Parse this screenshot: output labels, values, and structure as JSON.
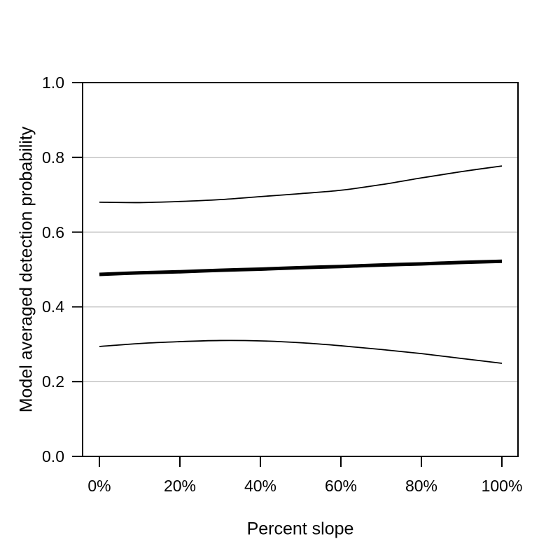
{
  "figure": {
    "background_color": "#ffffff",
    "text_color": "#000000"
  },
  "chart_data": {
    "type": "line",
    "title": "",
    "xlabel": "Percent slope",
    "ylabel": "Model averaged detection probability",
    "xlim": [
      0,
      100
    ],
    "ylim": [
      0.0,
      1.0
    ],
    "legend": "none",
    "grid": {
      "horizontal_at": [
        0.2,
        0.4,
        0.6,
        0.8
      ],
      "color": "#c8c8c8"
    },
    "x_ticks": {
      "values": [
        0,
        20,
        40,
        60,
        80,
        100
      ],
      "labels": [
        "0%",
        "20%",
        "40%",
        "60%",
        "80%",
        "100%"
      ]
    },
    "y_ticks": {
      "values": [
        0.0,
        0.2,
        0.4,
        0.6,
        0.8,
        1.0
      ],
      "labels": [
        "0.0",
        "0.2",
        "0.4",
        "0.6",
        "0.8",
        "1.0"
      ]
    },
    "x": [
      0,
      10,
      20,
      30,
      40,
      50,
      60,
      70,
      80,
      90,
      100
    ],
    "series": [
      {
        "name": "upper-confidence-limit",
        "line_width": "thin",
        "color": "#000000",
        "values": [
          0.68,
          0.679,
          0.682,
          0.687,
          0.695,
          0.703,
          0.712,
          0.727,
          0.745,
          0.762,
          0.777
        ]
      },
      {
        "name": "model-averaged-estimate",
        "line_width": "thick",
        "color": "#000000",
        "values": [
          0.487,
          0.491,
          0.494,
          0.498,
          0.501,
          0.505,
          0.508,
          0.512,
          0.515,
          0.519,
          0.522
        ]
      },
      {
        "name": "lower-confidence-limit",
        "line_width": "thin",
        "color": "#000000",
        "values": [
          0.294,
          0.302,
          0.307,
          0.31,
          0.309,
          0.304,
          0.296,
          0.286,
          0.275,
          0.262,
          0.249
        ]
      }
    ]
  }
}
